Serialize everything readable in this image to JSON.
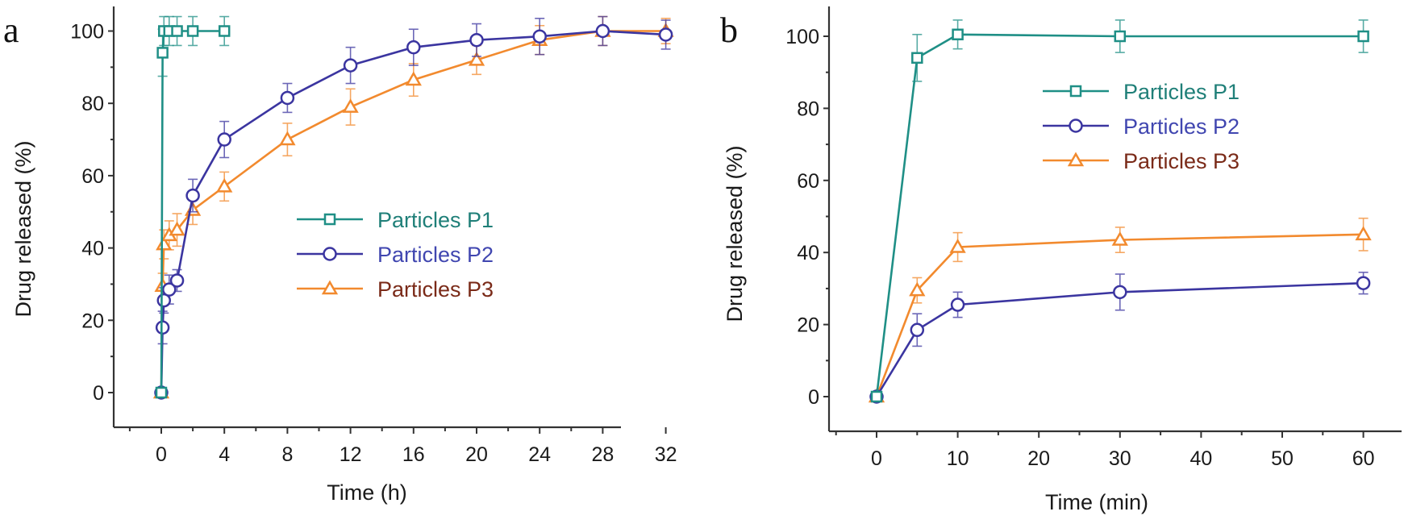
{
  "chart_data": [
    {
      "panel": "a",
      "type": "line",
      "title": "",
      "xlabel": "Time (h)",
      "ylabel": "Drug released (%)",
      "xlim": [
        -3,
        33
      ],
      "ylim": [
        -10,
        110
      ],
      "xticks": [
        0,
        4,
        8,
        12,
        16,
        20,
        24,
        28,
        32
      ],
      "yticks": [
        0,
        20,
        40,
        60,
        80,
        100
      ],
      "grid": false,
      "legend_position": "center-right",
      "series": [
        {
          "name": "Particles P1",
          "marker": "square",
          "color": "#1f8f86",
          "label_color": "#1f7f78",
          "x": [
            0,
            0.083,
            0.167,
            0.5,
            1,
            2,
            4
          ],
          "y": [
            0,
            94,
            100,
            100,
            100,
            100,
            100
          ],
          "err": [
            0,
            6.5,
            4,
            4,
            4,
            4,
            4
          ]
        },
        {
          "name": "Particles P2",
          "marker": "circle",
          "color": "#3b35a0",
          "label_color": "#4046b0",
          "x": [
            0,
            0.083,
            0.167,
            0.5,
            1,
            2,
            4,
            8,
            12,
            16,
            20,
            24,
            28,
            32
          ],
          "y": [
            0,
            18,
            25.5,
            28.5,
            31,
            54.5,
            70,
            81.5,
            90.5,
            95.5,
            97.5,
            98.5,
            100,
            99
          ],
          "err": [
            0,
            4.5,
            3.5,
            4,
            3,
            4.5,
            5,
            4,
            5,
            5,
            4.5,
            5,
            4,
            4
          ]
        },
        {
          "name": "Particles P3",
          "marker": "triangle",
          "color": "#f28a2e",
          "label_color": "#7a2a18",
          "x": [
            0,
            0.083,
            0.167,
            0.5,
            1,
            2,
            4,
            8,
            12,
            16,
            20,
            24,
            28,
            32
          ],
          "y": [
            0,
            29.5,
            41,
            43.5,
            45,
            50.5,
            57,
            70,
            79,
            86.5,
            92,
            97.5,
            100,
            100
          ],
          "err": [
            0,
            3.5,
            4,
            4,
            4.5,
            4,
            4,
            4.5,
            5,
            4.5,
            4,
            4,
            4,
            3.5
          ]
        }
      ]
    },
    {
      "panel": "b",
      "type": "line",
      "title": "",
      "xlabel": "Time (min)",
      "ylabel": "Drug released (%)",
      "xlim": [
        -6,
        65
      ],
      "ylim": [
        -10,
        110
      ],
      "xticks": [
        0,
        10,
        20,
        30,
        40,
        50,
        60
      ],
      "yticks": [
        0,
        20,
        40,
        60,
        80,
        100
      ],
      "grid": false,
      "legend_position": "top-right",
      "series": [
        {
          "name": "Particles P1",
          "marker": "square",
          "color": "#1f8f86",
          "label_color": "#1f7f78",
          "x": [
            0,
            5,
            10,
            30,
            60
          ],
          "y": [
            0,
            94,
            100.5,
            100,
            100
          ],
          "err": [
            0,
            6.5,
            4,
            4.5,
            4.5
          ]
        },
        {
          "name": "Particles P2",
          "marker": "circle",
          "color": "#3b35a0",
          "label_color": "#4046b0",
          "x": [
            0,
            5,
            10,
            30,
            60
          ],
          "y": [
            0,
            18.5,
            25.5,
            29,
            31.5
          ],
          "err": [
            0,
            4.5,
            3.5,
            5,
            3
          ]
        },
        {
          "name": "Particles P3",
          "marker": "triangle",
          "color": "#f28a2e",
          "label_color": "#7a2a18",
          "x": [
            0,
            5,
            10,
            30,
            60
          ],
          "y": [
            0,
            29.5,
            41.5,
            43.5,
            45
          ],
          "err": [
            0,
            3.5,
            4,
            3.5,
            4.5
          ]
        }
      ]
    }
  ]
}
